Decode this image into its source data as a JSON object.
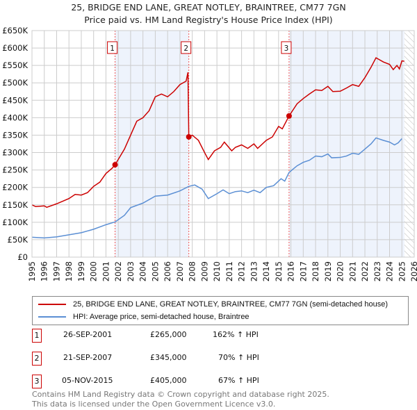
{
  "title": "25, BRIDGE END LANE, GREAT NOTLEY, BRAINTREE, CM77 7GN",
  "subtitle": "Price paid vs. HM Land Registry's House Price Index (HPI)",
  "chart_data": {
    "type": "line",
    "title": "25, BRIDGE END LANE, GREAT NOTLEY, BRAINTREE, CM77 7GN",
    "xlim": [
      1995,
      2026
    ],
    "ylim": [
      0,
      650000
    ],
    "x_ticks": [
      "1995",
      "1996",
      "1997",
      "1998",
      "1999",
      "2000",
      "2001",
      "2002",
      "2003",
      "2004",
      "2005",
      "2006",
      "2007",
      "2008",
      "2009",
      "2010",
      "2011",
      "2012",
      "2013",
      "2014",
      "2015",
      "2016",
      "2017",
      "2018",
      "2019",
      "2020",
      "2021",
      "2022",
      "2023",
      "2024",
      "2025",
      "2026"
    ],
    "y_ticks": [
      "£0",
      "£50K",
      "£100K",
      "£150K",
      "£200K",
      "£250K",
      "£300K",
      "£350K",
      "£400K",
      "£450K",
      "£500K",
      "£550K",
      "£600K",
      "£650K"
    ],
    "grid": true,
    "series": [
      {
        "name": "25, BRIDGE END LANE, GREAT NOTLEY, BRAINTREE, CM77 7GN (semi-detached house)",
        "color": "#cc0000",
        "points": [
          [
            1995,
            150
          ],
          [
            1995.3,
            145
          ],
          [
            1996,
            147
          ],
          [
            1996.2,
            143
          ],
          [
            1997,
            153
          ],
          [
            1998,
            168
          ],
          [
            1998.5,
            180
          ],
          [
            1999,
            178
          ],
          [
            1999.5,
            185
          ],
          [
            2000,
            203
          ],
          [
            2000.5,
            215
          ],
          [
            2001,
            240
          ],
          [
            2001.5,
            255
          ],
          [
            2001.74,
            265
          ],
          [
            2002.5,
            310
          ],
          [
            2003,
            350
          ],
          [
            2003.5,
            390
          ],
          [
            2004,
            400
          ],
          [
            2004.5,
            420
          ],
          [
            2005,
            460
          ],
          [
            2005.5,
            468
          ],
          [
            2006,
            460
          ],
          [
            2006.5,
            475
          ],
          [
            2007,
            495
          ],
          [
            2007.5,
            505
          ],
          [
            2007.65,
            530
          ],
          [
            2007.72,
            345
          ],
          [
            2008,
            350
          ],
          [
            2008.5,
            335
          ],
          [
            2009,
            300
          ],
          [
            2009.3,
            280
          ],
          [
            2009.8,
            305
          ],
          [
            2010.3,
            315
          ],
          [
            2010.6,
            330
          ],
          [
            2011.2,
            305
          ],
          [
            2011.5,
            315
          ],
          [
            2012,
            322
          ],
          [
            2012.5,
            312
          ],
          [
            2013,
            325
          ],
          [
            2013.3,
            312
          ],
          [
            2014,
            335
          ],
          [
            2014.5,
            345
          ],
          [
            2015,
            375
          ],
          [
            2015.3,
            368
          ],
          [
            2015.85,
            405
          ],
          [
            2016.5,
            440
          ],
          [
            2017,
            455
          ],
          [
            2017.5,
            468
          ],
          [
            2018,
            480
          ],
          [
            2018.5,
            478
          ],
          [
            2019,
            490
          ],
          [
            2019.4,
            475
          ],
          [
            2020,
            476
          ],
          [
            2020.5,
            485
          ],
          [
            2021,
            495
          ],
          [
            2021.5,
            490
          ],
          [
            2022,
            515
          ],
          [
            2022.5,
            545
          ],
          [
            2022.9,
            572
          ],
          [
            2023.5,
            560
          ],
          [
            2024,
            553
          ],
          [
            2024.3,
            538
          ],
          [
            2024.6,
            550
          ],
          [
            2024.8,
            540
          ],
          [
            2025,
            563
          ],
          [
            2025.2,
            562
          ]
        ]
      },
      {
        "name": "HPI: Average price, semi-detached house, Braintree",
        "color": "#5b8fd4",
        "points": [
          [
            1995,
            57
          ],
          [
            1996,
            55
          ],
          [
            1997,
            58
          ],
          [
            1998,
            64
          ],
          [
            1999,
            70
          ],
          [
            2000,
            80
          ],
          [
            2001,
            93
          ],
          [
            2001.74,
            101
          ],
          [
            2002.5,
            120
          ],
          [
            2003,
            142
          ],
          [
            2004,
            155
          ],
          [
            2005,
            175
          ],
          [
            2006,
            178
          ],
          [
            2007,
            190
          ],
          [
            2007.72,
            203
          ],
          [
            2008.2,
            207
          ],
          [
            2008.8,
            195
          ],
          [
            2009.3,
            168
          ],
          [
            2010,
            182
          ],
          [
            2010.5,
            193
          ],
          [
            2011,
            182
          ],
          [
            2011.5,
            188
          ],
          [
            2012,
            190
          ],
          [
            2012.5,
            185
          ],
          [
            2013,
            192
          ],
          [
            2013.5,
            185
          ],
          [
            2014,
            200
          ],
          [
            2014.6,
            205
          ],
          [
            2015.2,
            225
          ],
          [
            2015.5,
            218
          ],
          [
            2015.85,
            243
          ],
          [
            2016.5,
            262
          ],
          [
            2017,
            272
          ],
          [
            2017.5,
            278
          ],
          [
            2018,
            290
          ],
          [
            2018.5,
            288
          ],
          [
            2019,
            296
          ],
          [
            2019.3,
            285
          ],
          [
            2020,
            286
          ],
          [
            2020.5,
            290
          ],
          [
            2021,
            298
          ],
          [
            2021.5,
            295
          ],
          [
            2022,
            310
          ],
          [
            2022.5,
            325
          ],
          [
            2022.9,
            342
          ],
          [
            2023.5,
            335
          ],
          [
            2024,
            330
          ],
          [
            2024.4,
            322
          ],
          [
            2024.7,
            328
          ],
          [
            2025,
            340
          ]
        ]
      }
    ],
    "y_units": "thousands GBP",
    "sales": [
      {
        "label": "1",
        "x": 2001.74,
        "price": 265
      },
      {
        "label": "2",
        "x": 2007.72,
        "price": 345
      },
      {
        "label": "3",
        "x": 2015.85,
        "price": 405
      }
    ],
    "shaded_ranges": [
      [
        2001.74,
        2007.72
      ],
      [
        2015.85,
        2025.2
      ]
    ],
    "forecast_hatch_from": 2025.2,
    "legend_position": "below"
  },
  "legend": [
    {
      "label": "25, BRIDGE END LANE, GREAT NOTLEY, BRAINTREE, CM77 7GN (semi-detached house)",
      "color": "#cc0000"
    },
    {
      "label": "HPI: Average price, semi-detached house, Braintree",
      "color": "#5b8fd4"
    }
  ],
  "transactions": [
    {
      "num": "1",
      "date": "26-SEP-2001",
      "price": "£265,000",
      "hpi": "162% ↑ HPI"
    },
    {
      "num": "2",
      "date": "21-SEP-2007",
      "price": "£345,000",
      "hpi": "70% ↑ HPI"
    },
    {
      "num": "3",
      "date": "05-NOV-2015",
      "price": "£405,000",
      "hpi": "67% ↑ HPI"
    }
  ],
  "footer": {
    "line1": "Contains HM Land Registry data © Crown copyright and database right 2025.",
    "line2": "This data is licensed under the Open Government Licence v3.0."
  }
}
